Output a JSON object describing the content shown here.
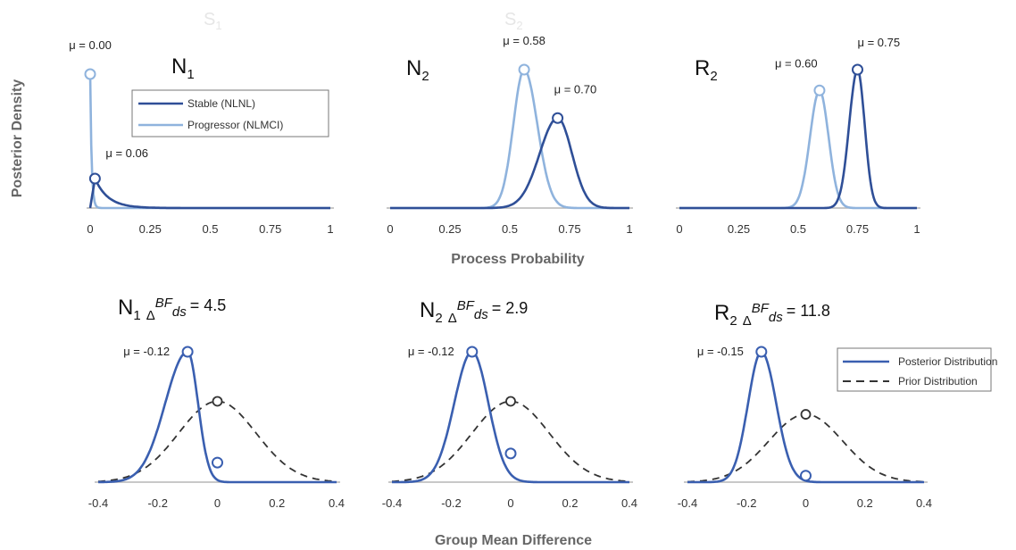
{
  "colors": {
    "stable": "#2f4f97",
    "progressor": "#8fb3dd",
    "posterior": "#3a5fb0",
    "prior": "#333333",
    "axis": "#b5b5b5"
  },
  "labels": {
    "y_top": "Posterior Density",
    "x_top": "Process Probability",
    "x_bottom": "Group Mean Difference",
    "ghost_1": "S",
    "ghost_1_sub": "1",
    "ghost_2": "S",
    "ghost_2_sub": "2"
  },
  "legend_top": {
    "stable": "Stable (NLNL)",
    "progressor": "Progressor (NLMCI)"
  },
  "legend_bottom": {
    "posterior": "Posterior Distribution",
    "prior": "Prior Distribution"
  },
  "mu_prefix": "μ = ",
  "bf_symbol": "Δ",
  "bf_label": "BF",
  "bf_sub": "ds",
  "chart_data": [
    {
      "type": "line",
      "panel": "N1",
      "title_main": "N",
      "title_sub": "1",
      "xlim": [
        0,
        1
      ],
      "xticks": [
        "0",
        "0.25",
        "0.5",
        "0.75",
        "1"
      ],
      "series": [
        {
          "name": "Stable (NLNL)",
          "mean": "0.06",
          "mode": 0.02,
          "peak_rel": 0.22,
          "shape": "decay"
        },
        {
          "name": "Progressor (NLMCI)",
          "mean": "0.00",
          "mode": 0.0,
          "peak_rel": 1.0,
          "shape": "spike"
        }
      ]
    },
    {
      "type": "line",
      "panel": "N2",
      "title_main": "N",
      "title_sub": "2",
      "xlim": [
        0,
        1
      ],
      "xticks": [
        "0",
        "0.25",
        "0.5",
        "0.75",
        "1"
      ],
      "series": [
        {
          "name": "Stable (NLNL)",
          "mean": "0.70",
          "mode": 0.7,
          "peak_rel": 0.65,
          "shape": "normal"
        },
        {
          "name": "Progressor (NLMCI)",
          "mean": "0.58",
          "mode": 0.56,
          "peak_rel": 1.0,
          "shape": "normal"
        }
      ]
    },
    {
      "type": "line",
      "panel": "R2",
      "title_main": "R",
      "title_sub": "2",
      "xlim": [
        0,
        1
      ],
      "xticks": [
        "0",
        "0.25",
        "0.5",
        "0.75",
        "1"
      ],
      "series": [
        {
          "name": "Stable (NLNL)",
          "mean": "0.75",
          "mode": 0.75,
          "peak_rel": 1.0,
          "shape": "normal"
        },
        {
          "name": "Progressor (NLMCI)",
          "mean": "0.60",
          "mode": 0.59,
          "peak_rel": 0.85,
          "shape": "normal"
        }
      ]
    },
    {
      "type": "line",
      "panel": "N1",
      "title_main": "N",
      "title_sub": "1",
      "bf_value": "= 4.5",
      "xlim": [
        -0.4,
        0.4
      ],
      "xticks": [
        "-0.4",
        "-0.2",
        "0",
        "0.2",
        "0.4"
      ],
      "posterior": {
        "mean": "-0.12",
        "mode": -0.1,
        "peak_rel": 1.0,
        "density_at_zero_rel": 0.15
      },
      "prior": {
        "mode": 0.0,
        "peak_rel": 0.62
      }
    },
    {
      "type": "line",
      "panel": "N2",
      "title_main": "N",
      "title_sub": "2",
      "bf_value": "= 2.9",
      "xlim": [
        -0.4,
        0.4
      ],
      "xticks": [
        "-0.4",
        "-0.2",
        "0",
        "0.2",
        "0.4"
      ],
      "posterior": {
        "mean": "-0.12",
        "mode": -0.13,
        "peak_rel": 1.0,
        "density_at_zero_rel": 0.22
      },
      "prior": {
        "mode": 0.0,
        "peak_rel": 0.62
      }
    },
    {
      "type": "line",
      "panel": "R2",
      "title_main": "R",
      "title_sub": "2",
      "bf_value": "= 11.8",
      "xlim": [
        -0.4,
        0.4
      ],
      "xticks": [
        "-0.4",
        "-0.2",
        "0",
        "0.2",
        "0.4"
      ],
      "posterior": {
        "mean": "-0.15",
        "mode": -0.15,
        "peak_rel": 1.0,
        "density_at_zero_rel": 0.05
      },
      "prior": {
        "mode": 0.0,
        "peak_rel": 0.52
      }
    }
  ]
}
